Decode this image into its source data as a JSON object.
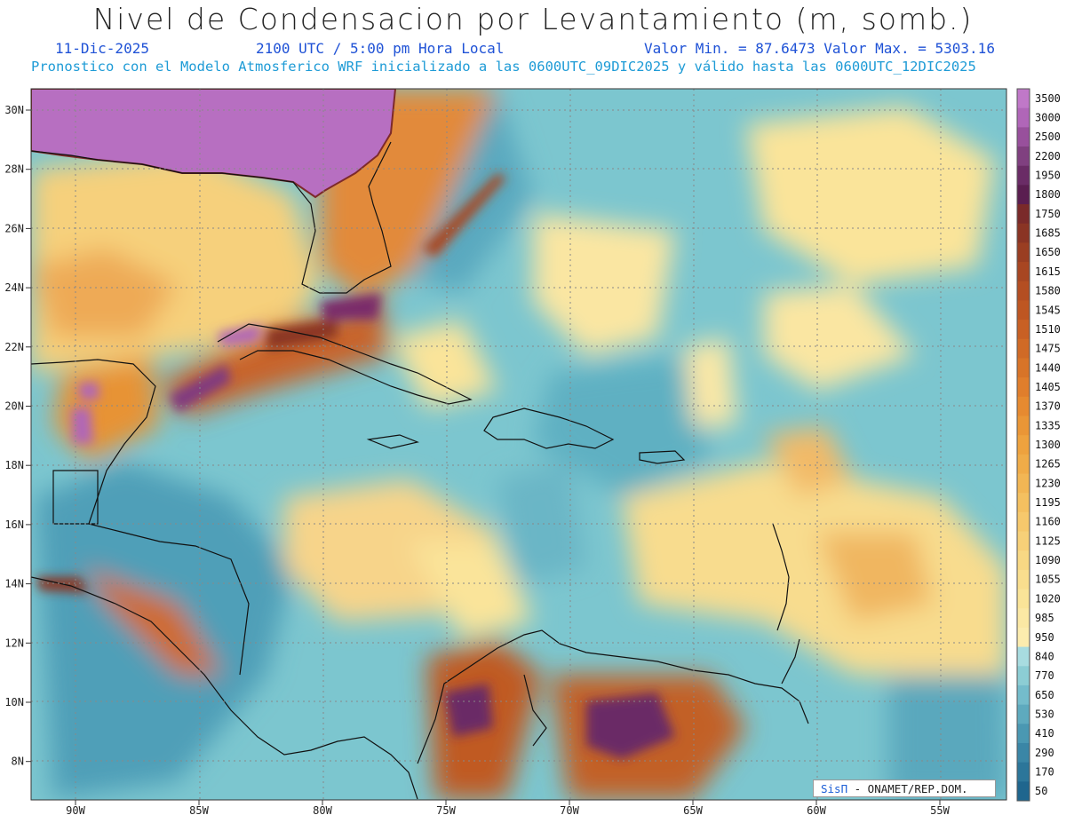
{
  "header": {
    "title": "Nivel de Condensacion por Levantamiento (m, somb.)",
    "date": "11-Dic-2025",
    "time": "2100 UTC / 5:00 pm Hora Local",
    "min_max": "Valor Min. = 87.6473  Valor Max. = 5303.16",
    "model_info": "Pronostico con el Modelo Atmosferico WRF inicializado a las 0600UTC_09DIC2025 y válido hasta las  0600UTC_12DIC2025"
  },
  "axes": {
    "lat_labels": [
      "30N",
      "28N",
      "26N",
      "24N",
      "22N",
      "20N",
      "18N",
      "16N",
      "14N",
      "12N",
      "10N",
      "8N"
    ],
    "lon_labels": [
      "90W",
      "85W",
      "80W",
      "75W",
      "70W",
      "65W",
      "60W",
      "55W"
    ]
  },
  "colorbar": {
    "labels": [
      "3500",
      "3000",
      "2500",
      "2200",
      "1950",
      "1800",
      "1750",
      "1685",
      "1650",
      "1615",
      "1580",
      "1545",
      "1510",
      "1475",
      "1440",
      "1405",
      "1370",
      "1335",
      "1300",
      "1265",
      "1230",
      "1195",
      "1160",
      "1125",
      "1090",
      "1055",
      "1020",
      "985",
      "950",
      "840",
      "770",
      "650",
      "530",
      "410",
      "290",
      "170",
      "50"
    ],
    "colors": [
      "#c078c8",
      "#b066b8",
      "#98509c",
      "#804080",
      "#6a2c66",
      "#5a1e50",
      "#7a2a2a",
      "#8a3424",
      "#9a3e22",
      "#a84622",
      "#b44e22",
      "#be5622",
      "#c86024",
      "#d06a26",
      "#d87428",
      "#e07e2c",
      "#e68a30",
      "#ea9636",
      "#eea23e",
      "#f0ac48",
      "#f2b654",
      "#f4c060",
      "#f6c86c",
      "#f7d078",
      "#f8d884",
      "#f9de8e",
      "#fae498",
      "#fbe8a4",
      "#fcecae",
      "#a8dce0",
      "#8ccdd4",
      "#74bccb",
      "#5eaabe",
      "#4a98b2",
      "#3a86a6",
      "#2c769a",
      "#1f668e"
    ]
  },
  "credit": {
    "brand": "SisΠ",
    "org": " - ONAMET/REP.DOM."
  }
}
